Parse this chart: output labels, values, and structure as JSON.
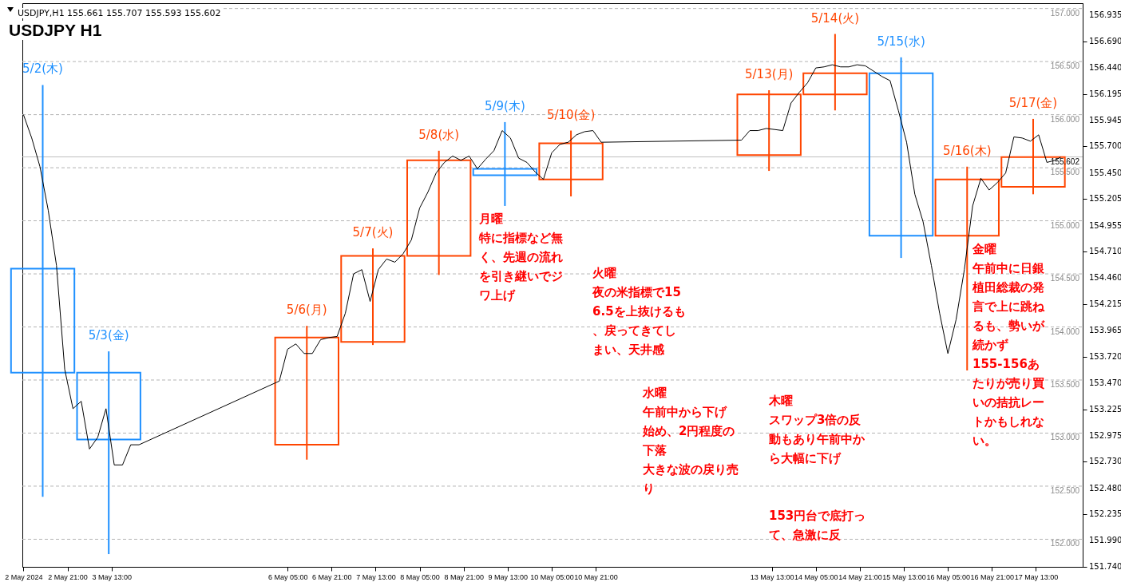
{
  "chart_data": {
    "type": "candlestick",
    "title": "USDJPY H1",
    "subtitle": "USDJPY,H1 155.661 155.707 155.593 155.602",
    "x": [
      "2024-05-02T12:00",
      "2024-05-03T12:00",
      "2024-05-06T12:00",
      "2024-05-07T12:00",
      "2024-05-08T12:00",
      "2024-05-09T12:00",
      "2024-05-10T12:00",
      "2024-05-13T12:00",
      "2024-05-14T12:00",
      "2024-05-15T12:00",
      "2024-05-16T12:00",
      "2024-05-17T12:00"
    ],
    "ohlc": [
      [
        154.55,
        156.28,
        152.4,
        153.57
      ],
      [
        153.57,
        153.77,
        151.86,
        152.94
      ],
      [
        152.89,
        154.01,
        152.75,
        153.9
      ],
      [
        153.86,
        154.74,
        153.83,
        154.67
      ],
      [
        154.67,
        155.66,
        154.49,
        155.57
      ],
      [
        155.49,
        155.93,
        155.14,
        155.43
      ],
      [
        155.39,
        155.85,
        155.23,
        155.73
      ],
      [
        155.62,
        156.23,
        155.47,
        156.19
      ],
      [
        156.19,
        156.76,
        156.04,
        156.39
      ],
      [
        156.39,
        156.54,
        154.65,
        154.86
      ],
      [
        154.86,
        155.51,
        153.59,
        155.39
      ],
      [
        155.32,
        155.96,
        155.25,
        155.6
      ]
    ],
    "colors": [
      "#1e90ff",
      "#1e90ff",
      "#ff4500",
      "#ff4500",
      "#ff4500",
      "#1e90ff",
      "#ff4500",
      "#ff4500",
      "#ff4500",
      "#1e90ff",
      "#ff4500",
      "#ff4500"
    ],
    "series": [
      {
        "type": "line",
        "color": "#000000",
        "x": [
          "2024-05-02T05:00",
          "2024-05-02T08:00",
          "2024-05-02T11:00",
          "2024-05-02T14:00",
          "2024-05-02T17:00",
          "2024-05-02T20:00",
          "2024-05-02T23:00",
          "2024-05-03T02:00",
          "2024-05-03T05:00",
          "2024-05-03T08:00",
          "2024-05-03T11:00",
          "2024-05-03T14:00",
          "2024-05-03T17:00",
          "2024-05-03T20:00",
          "2024-05-03T23:00",
          "2024-05-06T02:00",
          "2024-05-06T05:00",
          "2024-05-06T08:00",
          "2024-05-06T11:00",
          "2024-05-06T14:00",
          "2024-05-06T17:00",
          "2024-05-06T20:00",
          "2024-05-06T23:00",
          "2024-05-07T02:00",
          "2024-05-07T05:00",
          "2024-05-07T08:00",
          "2024-05-07T11:00",
          "2024-05-07T14:00",
          "2024-05-07T17:00",
          "2024-05-07T20:00",
          "2024-05-07T23:00",
          "2024-05-08T02:00",
          "2024-05-08T05:00",
          "2024-05-08T08:00",
          "2024-05-08T11:00",
          "2024-05-08T14:00",
          "2024-05-08T17:00",
          "2024-05-08T20:00",
          "2024-05-08T23:00",
          "2024-05-09T02:00",
          "2024-05-09T05:00",
          "2024-05-09T08:00",
          "2024-05-09T11:00",
          "2024-05-09T14:00",
          "2024-05-09T17:00",
          "2024-05-09T20:00",
          "2024-05-09T23:00",
          "2024-05-10T02:00",
          "2024-05-10T05:00",
          "2024-05-10T08:00",
          "2024-05-10T11:00",
          "2024-05-10T14:00",
          "2024-05-10T17:00",
          "2024-05-10T20:00",
          "2024-05-10T23:00",
          "2024-05-13T02:00",
          "2024-05-13T05:00",
          "2024-05-13T08:00",
          "2024-05-13T11:00",
          "2024-05-13T14:00",
          "2024-05-13T17:00",
          "2024-05-13T20:00",
          "2024-05-13T23:00",
          "2024-05-14T02:00",
          "2024-05-14T05:00",
          "2024-05-14T08:00",
          "2024-05-14T11:00",
          "2024-05-14T14:00",
          "2024-05-14T17:00",
          "2024-05-14T20:00",
          "2024-05-14T23:00",
          "2024-05-15T02:00",
          "2024-05-15T05:00",
          "2024-05-15T08:00",
          "2024-05-15T11:00",
          "2024-05-15T14:00",
          "2024-05-15T17:00",
          "2024-05-15T20:00",
          "2024-05-15T23:00",
          "2024-05-16T02:00",
          "2024-05-16T05:00",
          "2024-05-16T08:00",
          "2024-05-16T11:00",
          "2024-05-16T14:00",
          "2024-05-16T17:00",
          "2024-05-16T20:00",
          "2024-05-16T23:00",
          "2024-05-17T02:00",
          "2024-05-17T05:00",
          "2024-05-17T08:00",
          "2024-05-17T11:00",
          "2024-05-17T14:00",
          "2024-05-17T17:00",
          "2024-05-17T20:00",
          "2024-05-17T22:00"
        ],
        "values": [
          156.0,
          155.78,
          155.51,
          155.1,
          154.58,
          153.6,
          153.23,
          153.3,
          152.85,
          152.96,
          153.23,
          152.7,
          152.7,
          152.89,
          152.89,
          153.49,
          153.79,
          153.84,
          153.75,
          153.75,
          153.88,
          153.9,
          153.91,
          154.13,
          154.5,
          154.54,
          154.24,
          154.54,
          154.64,
          154.61,
          154.69,
          154.82,
          155.12,
          155.27,
          155.45,
          155.55,
          155.61,
          155.57,
          155.61,
          155.49,
          155.58,
          155.66,
          155.85,
          155.78,
          155.59,
          155.55,
          155.46,
          155.39,
          155.64,
          155.72,
          155.74,
          155.81,
          155.84,
          155.85,
          155.74,
          155.76,
          155.85,
          155.85,
          155.87,
          155.86,
          155.85,
          156.11,
          156.21,
          156.3,
          156.44,
          156.45,
          156.47,
          156.45,
          156.45,
          156.47,
          156.46,
          156.41,
          156.36,
          156.32,
          156.04,
          155.74,
          155.25,
          154.99,
          154.58,
          154.13,
          153.75,
          154.07,
          154.54,
          155.14,
          155.4,
          155.29,
          155.36,
          155.45,
          155.79,
          155.78,
          155.75,
          155.81,
          155.55,
          155.57,
          155.6
        ]
      }
    ],
    "xlim": [
      "2024-05-02T04:36",
      "2024-05-18T06:00"
    ],
    "xticks": [
      {
        "value": "2024-05-02T05:00",
        "label": "2 May 2024"
      },
      {
        "value": "2024-05-02T21:00",
        "label": "2 May 21:00"
      },
      {
        "value": "2024-05-03T13:00",
        "label": "3 May 13:00"
      },
      {
        "value": "2024-05-06T05:00",
        "label": "6 May 05:00"
      },
      {
        "value": "2024-05-06T21:00",
        "label": "6 May 21:00"
      },
      {
        "value": "2024-05-07T13:00",
        "label": "7 May 13:00"
      },
      {
        "value": "2024-05-08T05:00",
        "label": "8 May 05:00"
      },
      {
        "value": "2024-05-08T21:00",
        "label": "8 May 21:00"
      },
      {
        "value": "2024-05-09T13:00",
        "label": "9 May 13:00"
      },
      {
        "value": "2024-05-10T05:00",
        "label": "10 May 05:00"
      },
      {
        "value": "2024-05-10T21:00",
        "label": "10 May 21:00"
      },
      {
        "value": "2024-05-13T13:00",
        "label": "13 May 13:00"
      },
      {
        "value": "2024-05-14T05:00",
        "label": "14 May 05:00"
      },
      {
        "value": "2024-05-14T21:00",
        "label": "14 May 21:00"
      },
      {
        "value": "2024-05-15T13:00",
        "label": "15 May 13:00"
      },
      {
        "value": "2024-05-16T05:00",
        "label": "16 May 05:00"
      },
      {
        "value": "2024-05-16T21:00",
        "label": "16 May 21:00"
      },
      {
        "value": "2024-05-17T13:00",
        "label": "17 May 13:00"
      }
    ],
    "ylim": [
      151.74,
      157.05
    ],
    "yticks": [
      {
        "value": 156.935,
        "label": "156.935"
      },
      {
        "value": 156.69,
        "label": "156.690"
      },
      {
        "value": 156.44,
        "label": "156.440"
      },
      {
        "value": 156.195,
        "label": "156.195"
      },
      {
        "value": 155.945,
        "label": "155.945"
      },
      {
        "value": 155.7,
        "label": "155.700"
      },
      {
        "value": 155.45,
        "label": "155.450"
      },
      {
        "value": 155.205,
        "label": "155.205"
      },
      {
        "value": 154.955,
        "label": "154.955"
      },
      {
        "value": 154.71,
        "label": "154.710"
      },
      {
        "value": 154.46,
        "label": "154.460"
      },
      {
        "value": 154.215,
        "label": "154.215"
      },
      {
        "value": 153.965,
        "label": "153.965"
      },
      {
        "value": 153.72,
        "label": "153.720"
      },
      {
        "value": 153.47,
        "label": "153.470"
      },
      {
        "value": 153.225,
        "label": "153.225"
      },
      {
        "value": 152.975,
        "label": "152.975"
      },
      {
        "value": 152.73,
        "label": "152.730"
      },
      {
        "value": 152.48,
        "label": "152.480"
      },
      {
        "value": 152.235,
        "label": "152.235"
      },
      {
        "value": 151.99,
        "label": "151.990"
      },
      {
        "value": 151.74,
        "label": "151.740"
      }
    ],
    "ref_lines": [
      {
        "axis": "y",
        "value": 157.0,
        "label": "157.000",
        "color": "#b4b4b4",
        "line_style": "dashed"
      },
      {
        "axis": "y",
        "value": 156.5,
        "label": "156.500",
        "color": "#b4b4b4",
        "line_style": "dashed"
      },
      {
        "axis": "y",
        "value": 156.0,
        "label": "156.000",
        "color": "#b4b4b4",
        "line_style": "dashed"
      },
      {
        "axis": "y",
        "value": 155.602,
        "label": "155.602",
        "color": "#c0c0c0",
        "line_style": "solid"
      },
      {
        "axis": "y",
        "value": 155.5,
        "label": "155.500",
        "color": "#b4b4b4",
        "line_style": "dashed"
      },
      {
        "axis": "y",
        "value": 155.0,
        "label": "155.000",
        "color": "#b4b4b4",
        "line_style": "dashed"
      },
      {
        "axis": "y",
        "value": 154.5,
        "label": "154.500",
        "color": "#b4b4b4",
        "line_style": "dashed"
      },
      {
        "axis": "y",
        "value": 154.0,
        "label": "154.000",
        "color": "#b4b4b4",
        "line_style": "dashed"
      },
      {
        "axis": "y",
        "value": 153.5,
        "label": "153.500",
        "color": "#b4b4b4",
        "line_style": "dashed"
      },
      {
        "axis": "y",
        "value": 153.0,
        "label": "153.000",
        "color": "#b4b4b4",
        "line_style": "dashed"
      },
      {
        "axis": "y",
        "value": 152.5,
        "label": "152.500",
        "color": "#b4b4b4",
        "line_style": "dashed"
      },
      {
        "axis": "y",
        "value": 152.0,
        "label": "152.000",
        "color": "#b4b4b4",
        "line_style": "dashed"
      }
    ],
    "annotations": [
      {
        "text": "5/2(木)",
        "x": "2024-05-02T12:00",
        "y": 156.28
      },
      {
        "text": "5/3(金)",
        "x": "2024-05-03T12:00",
        "y": 153.77
      },
      {
        "text": "5/6(月)",
        "x": "2024-05-06T12:00",
        "y": 154.01
      },
      {
        "text": "5/7(火)",
        "x": "2024-05-07T12:00",
        "y": 154.74
      },
      {
        "text": "5/8(水)",
        "x": "2024-05-08T12:00",
        "y": 155.66
      },
      {
        "text": "5/9(木)",
        "x": "2024-05-09T12:00",
        "y": 155.93
      },
      {
        "text": "5/10(金)",
        "x": "2024-05-10T12:00",
        "y": 155.85
      },
      {
        "text": "5/13(月)",
        "x": "2024-05-13T12:00",
        "y": 156.23
      },
      {
        "text": "5/14(火)",
        "x": "2024-05-14T12:00",
        "y": 156.76
      },
      {
        "text": "5/15(水)",
        "x": "2024-05-15T12:00",
        "y": 156.54
      },
      {
        "text": "5/16(木)",
        "x": "2024-05-16T12:00",
        "y": 155.51
      },
      {
        "text": "5/17(金)",
        "x": "2024-05-17T12:00",
        "y": 155.96
      },
      "月曜",
      "特に指標など無く、先週の流れを引き継いでジワ上げ",
      "火曜",
      "夜の米指標で156.5を上抜けるも、戻ってきてしまい、天井感",
      "水曜",
      "午前中から下げ始め、2円程度の下落",
      "大きな波の戻り売り",
      "木曜",
      "スワップ3倍の反動もあり午前中から大幅に下げ",
      "153円台で底打って、急激に反",
      "金曜",
      "午前中に日銀植田総裁の発言で上に跳ねるも、勢いが続かず",
      "155-156あたりが売り買いの拮抗レートかもしれない。"
    ]
  }
}
